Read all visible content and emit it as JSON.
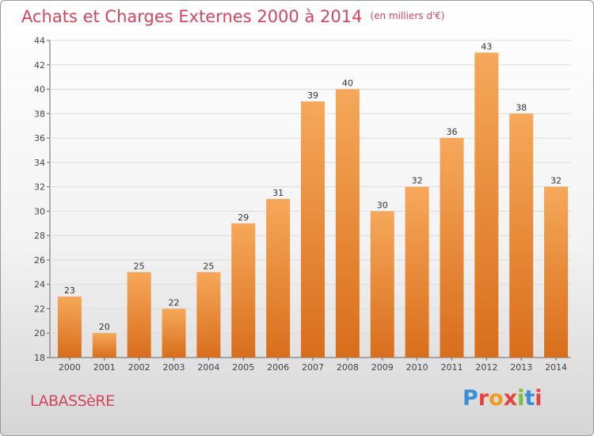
{
  "title": "Achats et Charges Externes 2000 à 2014",
  "title_unit": "(en milliers d'€)",
  "commune": "LABASSèRE",
  "logo": {
    "letters": [
      "P",
      "r",
      "o",
      "x",
      "i",
      "t",
      "i"
    ],
    "colors": [
      "#3a8fd6",
      "#e8423b",
      "#f29c1f",
      "#e8423b",
      "#7bbf3a",
      "#3a8fd6",
      "#e8423b"
    ]
  },
  "colors": {
    "bar_light": "#f6a85a",
    "bar_dark": "#d86e1c",
    "title": "#d2465e"
  },
  "chart_data": {
    "type": "bar",
    "title": "Achats et Charges Externes 2000 à 2014",
    "xlabel": "",
    "ylabel": "",
    "ylim": [
      18,
      44
    ],
    "yticks": [
      18,
      20,
      22,
      24,
      26,
      28,
      30,
      32,
      34,
      36,
      38,
      40,
      42,
      44
    ],
    "grid": true,
    "categories": [
      "2000",
      "2001",
      "2002",
      "2003",
      "2004",
      "2005",
      "2006",
      "2007",
      "2008",
      "2009",
      "2010",
      "2011",
      "2012",
      "2013",
      "2014"
    ],
    "values": [
      23,
      20,
      25,
      22,
      25,
      29,
      31,
      39,
      40,
      30,
      32,
      36,
      43,
      38,
      32
    ]
  }
}
